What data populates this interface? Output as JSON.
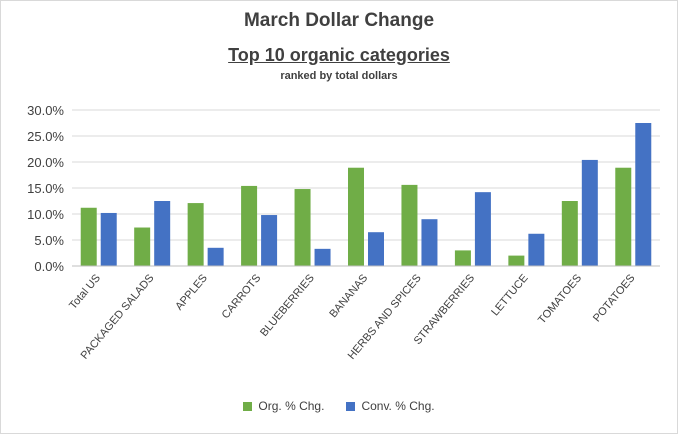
{
  "chart_data": {
    "type": "bar",
    "title": "March Dollar Change",
    "subtitle": "Top 10 organic categories",
    "note": "ranked by total dollars",
    "categories": [
      "Total US",
      "PACKAGED SALADS",
      "APPLES",
      "CARROTS",
      "BLUEBERRIES",
      "BANANAS",
      "HERBS AND SPICES",
      "STRAWBERRIES",
      "LETTUCE",
      "TOMATOES",
      "POTATOES"
    ],
    "series": [
      {
        "name": "Org. % Chg.",
        "color": "#70ad47",
        "values": [
          11.2,
          7.4,
          12.1,
          15.4,
          14.8,
          18.9,
          15.6,
          3.0,
          2.0,
          12.5,
          18.9
        ]
      },
      {
        "name": "Conv.  % Chg.",
        "color": "#4472c4",
        "values": [
          10.2,
          12.5,
          3.5,
          9.8,
          3.3,
          6.5,
          9.0,
          14.2,
          6.2,
          20.4,
          27.5
        ]
      }
    ],
    "ylim": [
      0,
      30
    ],
    "yticks": [
      "0.0%",
      "5.0%",
      "10.0%",
      "15.0%",
      "20.0%",
      "25.0%",
      "30.0%"
    ],
    "grid": true,
    "legend": "bottom"
  }
}
